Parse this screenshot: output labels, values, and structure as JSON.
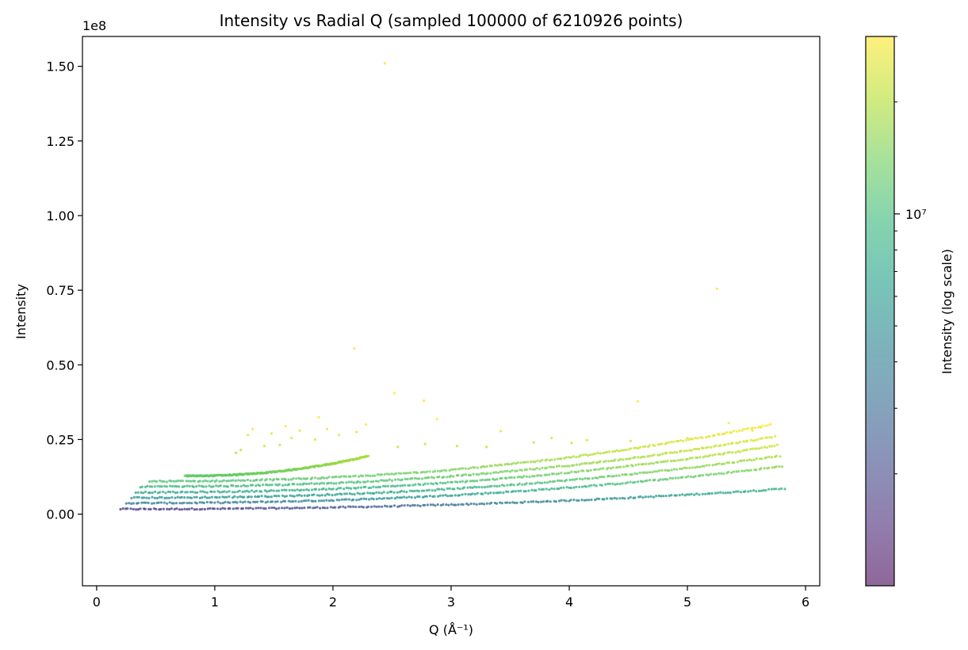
{
  "chart_data": {
    "type": "scatter",
    "title": "Intensity vs Radial Q (sampled 100000 of 6210926 points)",
    "xlabel": "Q (Å⁻¹)",
    "ylabel": "Intensity",
    "y_offset_label": "1e8",
    "xlim": [
      -0.12,
      6.12
    ],
    "ylim": [
      -0.24,
      1.6
    ],
    "y_scale_factor": 100000000,
    "x_ticks": [
      0,
      1,
      2,
      3,
      4,
      5,
      6
    ],
    "x_tick_labels": [
      "0",
      "1",
      "2",
      "3",
      "4",
      "5",
      "6"
    ],
    "y_ticks": [
      0.0,
      0.25,
      0.5,
      0.75,
      1.0,
      1.25,
      1.5
    ],
    "y_tick_labels": [
      "0.00",
      "0.25",
      "0.50",
      "0.75",
      "1.00",
      "1.25",
      "1.50"
    ],
    "grid": false,
    "colorbar": {
      "label": "Intensity (log scale)",
      "scale": "log",
      "colormap": "viridis",
      "alpha": 0.6,
      "major_tick_label": "10⁷",
      "major_tick_value": 10000000,
      "range": [
        1000000,
        30000000
      ],
      "colors": [
        "#440154",
        "#482878",
        "#3e4989",
        "#31688e",
        "#26828e",
        "#1f9e89",
        "#35b779",
        "#6ece58",
        "#b5de2b",
        "#fde725"
      ]
    },
    "bands": [
      {
        "x_start": 0.2,
        "x_end": 5.82,
        "y_start": 0.017,
        "y_end": 0.085
      },
      {
        "x_start": 0.25,
        "x_end": 5.8,
        "y_start": 0.037,
        "y_end": 0.16
      },
      {
        "x_start": 0.3,
        "x_end": 5.78,
        "y_start": 0.055,
        "y_end": 0.195
      },
      {
        "x_start": 0.33,
        "x_end": 5.76,
        "y_start": 0.073,
        "y_end": 0.23
      },
      {
        "x_start": 0.37,
        "x_end": 5.74,
        "y_start": 0.092,
        "y_end": 0.26
      },
      {
        "x_start": 0.45,
        "x_end": 5.7,
        "y_start": 0.11,
        "y_end": 0.3
      },
      {
        "x_start": 0.75,
        "x_end": 2.3,
        "y_start": 0.128,
        "y_end": 0.195
      }
    ],
    "outliers": [
      {
        "x": 2.44,
        "y": 1.51
      },
      {
        "x": 5.25,
        "y": 0.755
      },
      {
        "x": 2.18,
        "y": 0.555
      },
      {
        "x": 2.52,
        "y": 0.405
      },
      {
        "x": 4.58,
        "y": 0.378
      },
      {
        "x": 2.77,
        "y": 0.38
      },
      {
        "x": 1.88,
        "y": 0.325
      },
      {
        "x": 2.88,
        "y": 0.318
      },
      {
        "x": 5.35,
        "y": 0.305
      },
      {
        "x": 2.28,
        "y": 0.3
      },
      {
        "x": 1.32,
        "y": 0.285
      },
      {
        "x": 3.42,
        "y": 0.278
      },
      {
        "x": 1.6,
        "y": 0.295
      },
      {
        "x": 1.95,
        "y": 0.285
      },
      {
        "x": 2.2,
        "y": 0.275
      },
      {
        "x": 1.48,
        "y": 0.27
      },
      {
        "x": 1.72,
        "y": 0.28
      },
      {
        "x": 2.05,
        "y": 0.265
      },
      {
        "x": 1.28,
        "y": 0.265
      },
      {
        "x": 1.65,
        "y": 0.255
      },
      {
        "x": 1.85,
        "y": 0.25
      },
      {
        "x": 4.52,
        "y": 0.245
      },
      {
        "x": 5.0,
        "y": 0.255
      },
      {
        "x": 3.7,
        "y": 0.24
      },
      {
        "x": 4.15,
        "y": 0.248
      },
      {
        "x": 3.85,
        "y": 0.255
      },
      {
        "x": 2.78,
        "y": 0.235
      },
      {
        "x": 3.05,
        "y": 0.228
      },
      {
        "x": 3.3,
        "y": 0.225
      },
      {
        "x": 4.02,
        "y": 0.238
      },
      {
        "x": 2.55,
        "y": 0.225
      },
      {
        "x": 1.18,
        "y": 0.205
      },
      {
        "x": 1.22,
        "y": 0.215
      },
      {
        "x": 1.42,
        "y": 0.228
      },
      {
        "x": 1.55,
        "y": 0.232
      },
      {
        "x": 5.55,
        "y": 0.28
      },
      {
        "x": 5.62,
        "y": 0.29
      }
    ]
  }
}
